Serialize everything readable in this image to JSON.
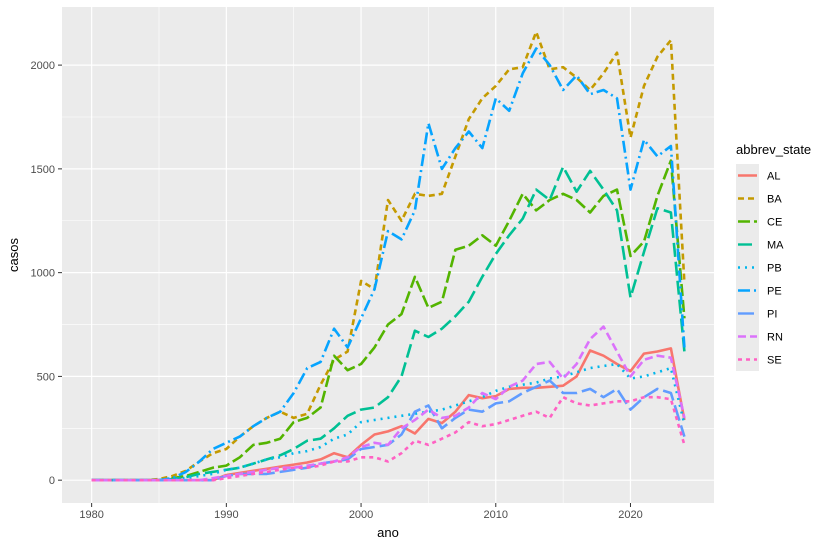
{
  "chart_data": {
    "type": "line",
    "title": "",
    "xlabel": "ano",
    "ylabel": "casos",
    "xlim": [
      1977.8,
      2026.2
    ],
    "ylim": [
      -110,
      2280
    ],
    "x_ticks": [
      1980,
      1990,
      2000,
      2010,
      2020
    ],
    "y_ticks": [
      0,
      500,
      1000,
      1500,
      2000
    ],
    "grid": true,
    "legend": {
      "title": "abbrev_state",
      "placement": "right"
    },
    "x": [
      1980,
      1981,
      1982,
      1983,
      1984,
      1985,
      1986,
      1987,
      1988,
      1989,
      1990,
      1991,
      1992,
      1993,
      1994,
      1995,
      1996,
      1997,
      1998,
      1999,
      2000,
      2001,
      2002,
      2003,
      2004,
      2005,
      2006,
      2007,
      2008,
      2009,
      2010,
      2011,
      2012,
      2013,
      2014,
      2015,
      2016,
      2017,
      2018,
      2019,
      2020,
      2021,
      2022,
      2023,
      2024
    ],
    "series": [
      {
        "name": "AL",
        "color": "#F8766D",
        "dash": "solid",
        "values": [
          0,
          0,
          0,
          0,
          0,
          0,
          0,
          0,
          0,
          0,
          25,
          35,
          45,
          55,
          65,
          75,
          85,
          100,
          130,
          110,
          170,
          220,
          235,
          260,
          225,
          295,
          275,
          330,
          410,
          395,
          405,
          440,
          445,
          445,
          450,
          455,
          500,
          625,
          600,
          560,
          525,
          610,
          620,
          635,
          290
        ]
      },
      {
        "name": "BA",
        "color": "#C49A00",
        "dash": "6,4",
        "values": [
          0,
          0,
          0,
          0,
          0,
          5,
          20,
          45,
          90,
          130,
          150,
          210,
          260,
          300,
          330,
          300,
          320,
          460,
          580,
          620,
          960,
          920,
          1350,
          1250,
          1380,
          1370,
          1380,
          1560,
          1740,
          1840,
          1900,
          1980,
          1990,
          2160,
          1980,
          1990,
          1940,
          1880,
          1960,
          2060,
          1650,
          1900,
          2040,
          2120,
          950
        ]
      },
      {
        "name": "CE",
        "color": "#53B400",
        "dash": "12,4",
        "values": [
          0,
          0,
          0,
          0,
          0,
          0,
          10,
          20,
          40,
          60,
          70,
          110,
          170,
          180,
          200,
          280,
          300,
          350,
          600,
          530,
          560,
          640,
          750,
          800,
          980,
          830,
          860,
          1110,
          1130,
          1180,
          1130,
          1250,
          1380,
          1300,
          1350,
          1380,
          1350,
          1290,
          1370,
          1400,
          1080,
          1150,
          1370,
          1540,
          780
        ]
      },
      {
        "name": "MA",
        "color": "#00C094",
        "dash": "14,5",
        "values": [
          0,
          0,
          0,
          0,
          0,
          0,
          5,
          15,
          30,
          40,
          50,
          60,
          80,
          100,
          120,
          150,
          190,
          200,
          250,
          310,
          340,
          350,
          400,
          500,
          720,
          690,
          730,
          790,
          860,
          980,
          1090,
          1180,
          1260,
          1400,
          1350,
          1510,
          1390,
          1490,
          1400,
          1300,
          880,
          1100,
          1310,
          1290,
          620
        ]
      },
      {
        "name": "PB",
        "color": "#00B6EB",
        "dash": "2,5",
        "values": [
          0,
          0,
          0,
          0,
          0,
          0,
          5,
          10,
          20,
          30,
          50,
          60,
          80,
          100,
          110,
          130,
          140,
          160,
          200,
          220,
          280,
          290,
          300,
          310,
          320,
          330,
          340,
          360,
          380,
          400,
          430,
          450,
          460,
          470,
          490,
          500,
          520,
          540,
          550,
          560,
          490,
          500,
          520,
          540,
          270
        ]
      },
      {
        "name": "PE",
        "color": "#06A4FF",
        "dash": "12,4,2,4",
        "values": [
          0,
          0,
          0,
          0,
          0,
          0,
          10,
          40,
          90,
          150,
          180,
          210,
          260,
          300,
          330,
          420,
          540,
          570,
          730,
          640,
          780,
          920,
          1200,
          1160,
          1300,
          1720,
          1500,
          1600,
          1680,
          1600,
          1840,
          1780,
          1960,
          2080,
          2000,
          1880,
          1950,
          1860,
          1880,
          1840,
          1400,
          1640,
          1560,
          1610,
          640
        ]
      },
      {
        "name": "PI",
        "color": "#619CFF",
        "dash": "16,5",
        "values": [
          0,
          0,
          0,
          0,
          0,
          0,
          0,
          0,
          0,
          0,
          20,
          30,
          30,
          30,
          40,
          50,
          60,
          80,
          90,
          100,
          150,
          160,
          170,
          220,
          330,
          360,
          250,
          300,
          340,
          330,
          370,
          380,
          420,
          450,
          480,
          420,
          420,
          440,
          400,
          440,
          340,
          400,
          440,
          420,
          210
        ]
      },
      {
        "name": "RN",
        "color": "#DB72FB",
        "dash": "8,4",
        "values": [
          0,
          0,
          0,
          0,
          0,
          0,
          0,
          0,
          0,
          10,
          20,
          30,
          40,
          50,
          60,
          60,
          70,
          80,
          90,
          110,
          160,
          180,
          170,
          250,
          290,
          340,
          300,
          310,
          350,
          420,
          390,
          450,
          480,
          560,
          570,
          490,
          560,
          680,
          740,
          620,
          500,
          580,
          600,
          590,
          300
        ]
      },
      {
        "name": "SE",
        "color": "#FF61C3",
        "dash": "4,4",
        "values": [
          0,
          0,
          0,
          0,
          0,
          0,
          0,
          0,
          0,
          0,
          10,
          20,
          30,
          40,
          50,
          60,
          60,
          70,
          90,
          90,
          110,
          110,
          90,
          130,
          190,
          170,
          200,
          230,
          280,
          260,
          270,
          290,
          310,
          330,
          300,
          400,
          370,
          360,
          370,
          380,
          380,
          400,
          400,
          390,
          170
        ]
      }
    ]
  }
}
